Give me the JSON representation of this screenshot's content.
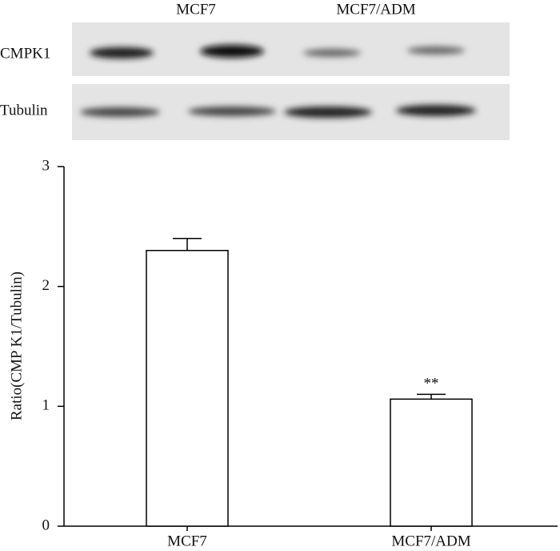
{
  "blot": {
    "columns": [
      "MCF7",
      "MCF7/ADM"
    ],
    "rows": [
      "CMPK1",
      "Tubulin"
    ]
  },
  "chart_data": {
    "type": "bar",
    "ylabel": "Ratio(CMP K1/Tubulin)",
    "categories": [
      "MCF7",
      "MCF7/ADM"
    ],
    "values": [
      2.3,
      1.06
    ],
    "errors": [
      0.1,
      0.04
    ],
    "color": "#ffffff",
    "ylim": [
      0,
      3
    ],
    "yticks": [
      0,
      1,
      2,
      3
    ],
    "annotations": [
      {
        "text": "**",
        "category": "MCF7/ADM"
      }
    ]
  }
}
